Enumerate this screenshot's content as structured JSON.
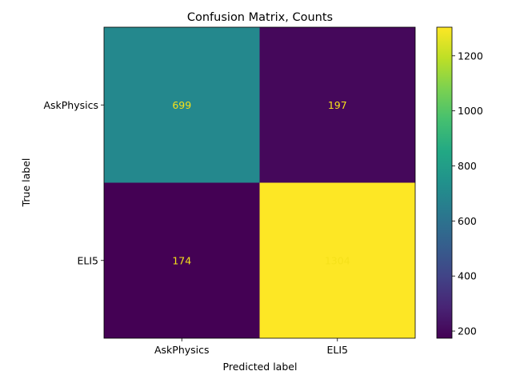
{
  "chart_data": {
    "type": "heatmap",
    "title": "Confusion Matrix, Counts",
    "xlabel": "Predicted label",
    "ylabel": "True label",
    "x_categories": [
      "AskPhysics",
      "ELI5"
    ],
    "y_categories": [
      "AskPhysics",
      "ELI5"
    ],
    "values": [
      [
        699,
        197
      ],
      [
        174,
        1304
      ]
    ],
    "colormap": "viridis",
    "color_range": [
      174,
      1304
    ],
    "colorbar_ticks": [
      200,
      400,
      600,
      800,
      1000,
      1200
    ],
    "cell_text_color": "#f5e11a"
  }
}
